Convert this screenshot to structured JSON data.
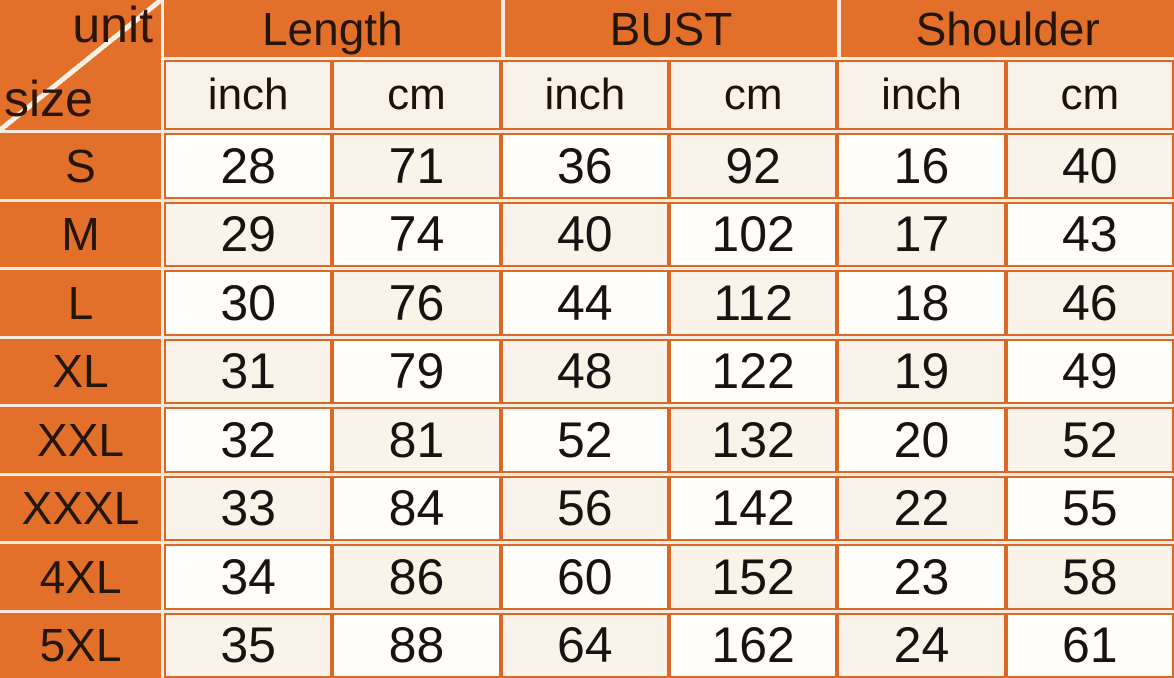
{
  "colors": {
    "orange": "#E2702B",
    "grid_orange": "#DC6827",
    "cream_line": "#F6ECDD",
    "cell_cream": "#FAF3EA",
    "text_dark": "#241509"
  },
  "chart_data": {
    "type": "table",
    "title": "garment size chart",
    "corner": {
      "top_right": "unit",
      "bottom_left": "size"
    },
    "column_groups": [
      {
        "label": "Length",
        "subcolumns": [
          "inch",
          "cm"
        ]
      },
      {
        "label": "BUST",
        "subcolumns": [
          "inch",
          "cm"
        ]
      },
      {
        "label": "Shoulder",
        "subcolumns": [
          "inch",
          "cm"
        ]
      }
    ],
    "rows": [
      {
        "size": "S",
        "values": [
          28,
          71,
          36,
          92,
          16,
          40
        ]
      },
      {
        "size": "M",
        "values": [
          29,
          74,
          40,
          102,
          17,
          43
        ]
      },
      {
        "size": "L",
        "values": [
          30,
          76,
          44,
          112,
          18,
          46
        ]
      },
      {
        "size": "XL",
        "values": [
          31,
          79,
          48,
          122,
          19,
          49
        ]
      },
      {
        "size": "XXL",
        "values": [
          32,
          81,
          52,
          132,
          20,
          52
        ]
      },
      {
        "size": "XXXL",
        "values": [
          33,
          84,
          56,
          142,
          22,
          55
        ]
      },
      {
        "size": "4XL",
        "values": [
          34,
          86,
          60,
          152,
          23,
          58
        ]
      },
      {
        "size": "5XL",
        "values": [
          35,
          88,
          64,
          162,
          24,
          61
        ]
      }
    ]
  }
}
